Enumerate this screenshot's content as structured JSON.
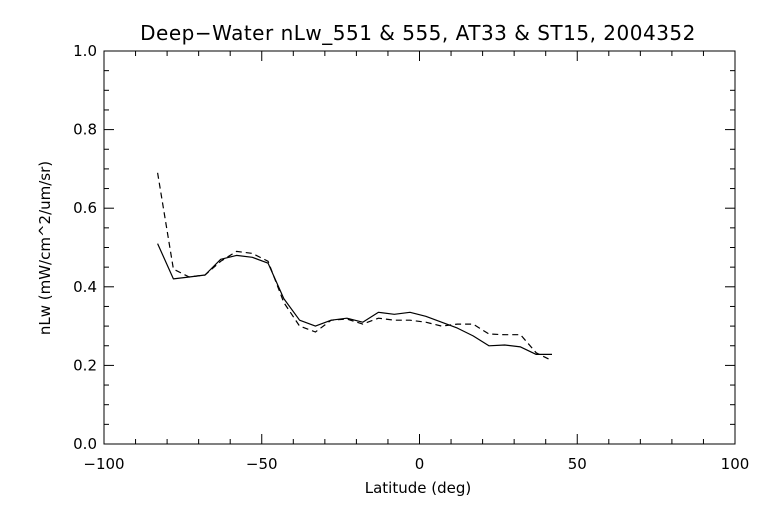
{
  "chart_data": {
    "type": "line",
    "title": "Deep−Water nLw_551 & 555, AT33 & ST15, 2004352",
    "xlabel": "Latitude (deg)",
    "ylabel": "nLw (mW/cm^2/um/sr)",
    "xlim": [
      -100,
      100
    ],
    "ylim": [
      0.0,
      1.0
    ],
    "xticks": [
      -100,
      -50,
      0,
      50,
      100
    ],
    "xtick_labels": [
      "−100",
      "−50",
      "0",
      "50",
      "100"
    ],
    "yticks": [
      0.0,
      0.2,
      0.4,
      0.6,
      0.8,
      1.0
    ],
    "ytick_labels": [
      "0.0",
      "0.2",
      "0.4",
      "0.6",
      "0.8",
      "1.0"
    ],
    "grid": false,
    "series": [
      {
        "style": "solid",
        "x": [
          -83,
          -78,
          -73,
          -68,
          -63,
          -58,
          -53,
          -48,
          -43,
          -38,
          -33,
          -28,
          -23,
          -18,
          -13,
          -8,
          -3,
          2,
          7,
          12,
          17,
          22,
          27,
          32,
          37,
          42
        ],
        "y": [
          0.51,
          0.42,
          0.425,
          0.43,
          0.47,
          0.48,
          0.475,
          0.46,
          0.37,
          0.315,
          0.3,
          0.315,
          0.32,
          0.31,
          0.335,
          0.33,
          0.335,
          0.325,
          0.31,
          0.295,
          0.275,
          0.25,
          0.252,
          0.247,
          0.228,
          0.228
        ]
      },
      {
        "style": "dashed",
        "x": [
          -83,
          -78,
          -73,
          -68,
          -63,
          -58,
          -53,
          -48,
          -43,
          -38,
          -33,
          -28,
          -23,
          -18,
          -13,
          -8,
          -3,
          2,
          7,
          12,
          17,
          22,
          27,
          32,
          37,
          42
        ],
        "y": [
          0.69,
          0.445,
          0.425,
          0.43,
          0.465,
          0.49,
          0.485,
          0.465,
          0.36,
          0.3,
          0.285,
          0.315,
          0.318,
          0.305,
          0.32,
          0.315,
          0.315,
          0.31,
          0.3,
          0.305,
          0.305,
          0.28,
          0.278,
          0.278,
          0.232,
          0.212
        ]
      }
    ]
  }
}
